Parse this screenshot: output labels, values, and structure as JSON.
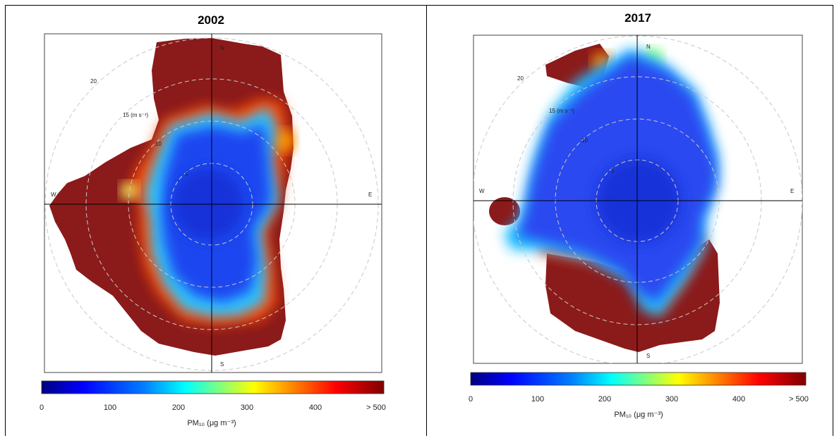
{
  "chart_data": [
    {
      "type": "polar-heatmap",
      "title": "2002",
      "directions": {
        "n": "N",
        "e": "E",
        "s": "S",
        "w": "W"
      },
      "radial_labels": [
        "5",
        "10",
        "15 (m s⁻¹)",
        "20"
      ],
      "radial_values": [
        5,
        10,
        15,
        20
      ],
      "colorbar": {
        "ticks": [
          "0",
          "100",
          "200",
          "300",
          "400",
          "> 500"
        ],
        "label": "PM₁₀ (μg m⁻³)",
        "range": [
          0,
          500
        ]
      },
      "regions": [
        {
          "desc": "west-southwest to south (225-180 deg)",
          "level": ">500"
        },
        {
          "desc": "north-northwest (330-0 deg), far",
          "level": ">500"
        },
        {
          "desc": "east-northeast at ~15 m/s",
          "level": 350
        },
        {
          "desc": "inner core",
          "level": 40
        }
      ]
    },
    {
      "type": "polar-heatmap",
      "title": "2017",
      "directions": {
        "n": "N",
        "e": "E",
        "s": "S",
        "w": "W"
      },
      "radial_labels": [
        "5",
        "10",
        "15 (m s⁻¹)",
        "20"
      ],
      "radial_values": [
        5,
        10,
        15,
        20
      ],
      "colorbar": {
        "ticks": [
          "0",
          "100",
          "200",
          "300",
          "400",
          "> 500"
        ],
        "label": "PM₁₀ (μg m⁻³)",
        "range": [
          0,
          500
        ]
      },
      "regions": [
        {
          "desc": "south-southwest to south-southeast, outer",
          "level": ">500"
        },
        {
          "desc": "northwest at ~20 m/s",
          "level": ">500"
        },
        {
          "desc": "west at ~20 m/s",
          "level": ">500"
        },
        {
          "desc": "inner core",
          "level": 40
        }
      ]
    }
  ],
  "colors": {
    "scale": [
      "#00007f",
      "#0000ff",
      "#007fff",
      "#00ffff",
      "#7fff7f",
      "#ffff00",
      "#ff7f00",
      "#ff0000",
      "#7f0000"
    ],
    "max_block": "#8b1a1a",
    "ring_stroke": "#bbbbbb",
    "axis": "#000000"
  }
}
